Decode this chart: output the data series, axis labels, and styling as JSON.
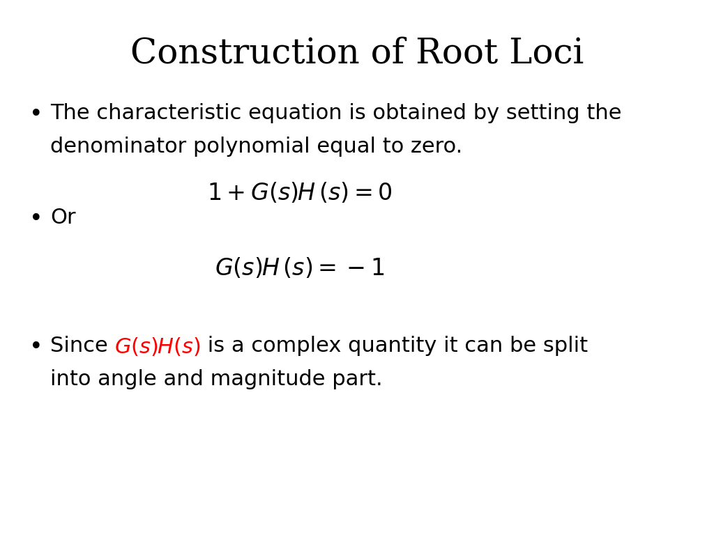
{
  "title": "Construction of Root Loci",
  "title_fontsize": 36,
  "title_font": "DejaVu Serif",
  "background_color": "#ffffff",
  "text_color": "#000000",
  "red_color": "#ff0000",
  "bullet1_line1": "The characteristic equation is obtained by setting the",
  "bullet1_line2": "denominator polynomial equal to zero.",
  "bullet2": "Or",
  "bullet3_line2": "into angle and magnitude part.",
  "body_fontsize": 22,
  "eq_fontsize": 24,
  "bullet_char": "•",
  "figwidth": 10.24,
  "figheight": 7.68,
  "dpi": 100
}
